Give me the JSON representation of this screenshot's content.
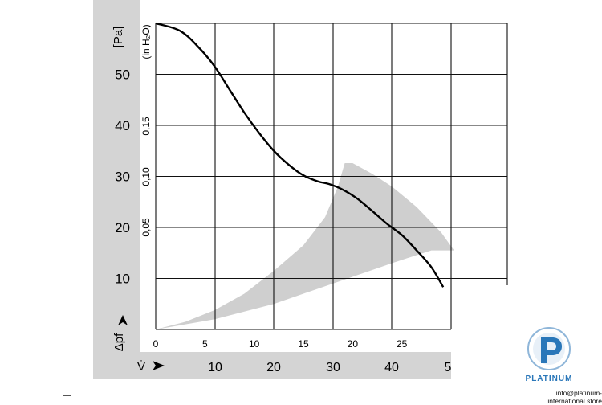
{
  "chart_data": {
    "type": "line",
    "pa_label": "[Pa]",
    "inh2o_label": "(in H₂O)",
    "dp_label": "Δpf",
    "v_label": "V̇",
    "pa_ticks": [
      {
        "value": 50,
        "label": "50"
      },
      {
        "value": 40,
        "label": "40"
      },
      {
        "value": 30,
        "label": "30"
      },
      {
        "value": 20,
        "label": "20"
      },
      {
        "value": 10,
        "label": "10"
      }
    ],
    "inh2o_ticks": [
      {
        "value": 0.15,
        "label": "0,15"
      },
      {
        "value": 0.1,
        "label": "0,10"
      },
      {
        "value": 0.05,
        "label": "0,05"
      }
    ],
    "cfm_ticks": [
      "0",
      "5",
      "10",
      "15",
      "20",
      "25"
    ],
    "m3h_ticks": [
      "10",
      "20",
      "30",
      "40",
      "5"
    ],
    "xlim_cfm": [
      0,
      30
    ],
    "ylim_pa": [
      0,
      60
    ],
    "grid": true,
    "series": [
      {
        "points": [
          [
            0,
            60
          ],
          [
            2.5,
            58.5
          ],
          [
            4.5,
            55
          ],
          [
            6,
            51.5
          ],
          [
            7.5,
            47
          ],
          [
            9,
            42.5
          ],
          [
            10.5,
            38.5
          ],
          [
            12,
            35
          ],
          [
            13.5,
            32.3
          ],
          [
            15,
            30.2
          ],
          [
            16.5,
            29
          ],
          [
            17.6,
            28.5
          ],
          [
            19,
            27.4
          ],
          [
            20.5,
            25.6
          ],
          [
            22,
            23.2
          ],
          [
            23.5,
            20.7
          ],
          [
            25,
            18.5
          ],
          [
            26.5,
            15.5
          ],
          [
            28,
            12.2
          ],
          [
            29.2,
            8.3
          ]
        ]
      }
    ],
    "band": {
      "lower": [
        [
          0,
          0
        ],
        [
          6,
          2
        ],
        [
          12,
          5
        ],
        [
          18,
          9
        ],
        [
          24,
          13
        ],
        [
          28,
          15.5
        ],
        [
          30.3,
          15.5
        ]
      ],
      "upper": [
        [
          30.3,
          15.5
        ],
        [
          29,
          19
        ],
        [
          26.5,
          24
        ],
        [
          24,
          28
        ],
        [
          22,
          30.5
        ],
        [
          20,
          32.6
        ],
        [
          19.2,
          32.6
        ],
        [
          18.5,
          28
        ],
        [
          17.2,
          22
        ],
        [
          15,
          16.5
        ],
        [
          12,
          11.5
        ],
        [
          9,
          7
        ],
        [
          6,
          3.8
        ],
        [
          3,
          1.5
        ],
        [
          0,
          0
        ]
      ]
    }
  },
  "brand": {
    "name": "PLATINUM",
    "email": "info@platinum-international.store",
    "color": "#2a77b9"
  }
}
